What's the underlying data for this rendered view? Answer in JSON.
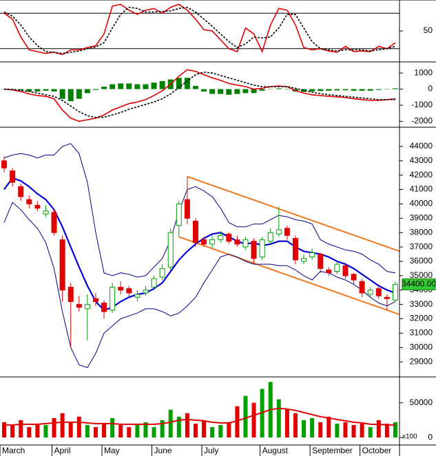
{
  "chart_data": [
    {
      "type": "oscillator",
      "ylim": [
        0,
        100
      ],
      "yticks": [
        50
      ],
      "levels": [
        20,
        80
      ],
      "series": [
        {
          "color": "#e00000",
          "style": "solid",
          "values": [
            80,
            70,
            40,
            18,
            15,
            12,
            14,
            10,
            18,
            18,
            22,
            25,
            45,
            92,
            95,
            85,
            78,
            85,
            88,
            80,
            90,
            95,
            85,
            70,
            52,
            50,
            35,
            20,
            15,
            55,
            45,
            15,
            60,
            88,
            85,
            60,
            22,
            18,
            20,
            16,
            14,
            24,
            15,
            16,
            15,
            24,
            20,
            30
          ]
        },
        {
          "color": "#000000",
          "style": "dashed",
          "values": [
            82,
            75,
            60,
            40,
            25,
            15,
            14,
            12,
            14,
            16,
            20,
            23,
            30,
            55,
            78,
            90,
            88,
            82,
            82,
            83,
            84,
            88,
            90,
            82,
            70,
            58,
            45,
            32,
            22,
            28,
            40,
            38,
            40,
            55,
            78,
            78,
            55,
            32,
            20,
            18,
            16,
            18,
            18,
            18,
            16,
            18,
            20,
            24
          ]
        }
      ]
    },
    {
      "type": "macd",
      "ylim": [
        -2280,
        1560
      ],
      "yticks": [
        1000,
        0,
        -1000,
        -2000
      ],
      "histogram": {
        "color": "#008000",
        "values": [
          0,
          -30,
          -70,
          -150,
          -150,
          -100,
          -150,
          -600,
          -750,
          -600,
          -250,
          -50,
          150,
          300,
          350,
          350,
          300,
          300,
          400,
          500,
          600,
          700,
          700,
          200,
          -150,
          -300,
          -300,
          -350,
          -300,
          -250,
          -250,
          -100,
          0,
          50,
          0,
          -150,
          -170,
          -150,
          -120,
          -100,
          -80,
          -70,
          -100,
          -100,
          -100,
          -50,
          0,
          50
        ]
      },
      "series": [
        {
          "color": "#e00000",
          "style": "solid",
          "values": [
            0,
            -50,
            -150,
            -300,
            -400,
            -450,
            -600,
            -1300,
            -1800,
            -2000,
            -1900,
            -1800,
            -1600,
            -1300,
            -1100,
            -900,
            -800,
            -650,
            -400,
            -100,
            300,
            800,
            1200,
            1100,
            900,
            700,
            550,
            350,
            250,
            150,
            0,
            50,
            150,
            200,
            150,
            -100,
            -250,
            -350,
            -400,
            -450,
            -480,
            -520,
            -600,
            -650,
            -700,
            -700,
            -650,
            -600
          ]
        },
        {
          "color": "#000000",
          "style": "dashed",
          "values": [
            0,
            -20,
            -80,
            -150,
            -250,
            -350,
            -450,
            -700,
            -1050,
            -1400,
            -1650,
            -1750,
            -1750,
            -1600,
            -1450,
            -1250,
            -1100,
            -950,
            -800,
            -600,
            -300,
            100,
            500,
            900,
            1050,
            1000,
            850,
            700,
            550,
            400,
            250,
            150,
            150,
            150,
            150,
            50,
            -80,
            -200,
            -280,
            -350,
            -400,
            -450,
            -500,
            -550,
            -600,
            -650,
            -650,
            -650
          ]
        }
      ]
    },
    {
      "type": "candlestick",
      "ylim": [
        28050,
        45240
      ],
      "yticks": [
        29000,
        30000,
        31000,
        32000,
        33000,
        34000,
        35000,
        36000,
        37000,
        38000,
        39000,
        40000,
        41000,
        42000,
        43000,
        44000
      ],
      "up_color": "#00a000",
      "down_color": "#e00000",
      "open": [
        43000,
        42300,
        41200,
        40300,
        39900,
        39300,
        39400,
        37500,
        34200,
        33000,
        32700,
        33400,
        33100,
        32600,
        34200,
        34100,
        33500,
        33800,
        34200,
        34900,
        35600,
        38500,
        40300,
        38800,
        37500,
        37200,
        37500,
        37900,
        37500,
        37000,
        37400,
        36300,
        37400,
        37900,
        38300,
        37600,
        36000,
        36300,
        36500,
        35400,
        35300,
        35700,
        35100,
        34600,
        33700,
        34100,
        33500,
        33300
      ],
      "high": [
        43300,
        42500,
        41400,
        40600,
        40200,
        39900,
        39600,
        37800,
        34500,
        33600,
        33700,
        33800,
        33300,
        34500,
        34600,
        34300,
        34000,
        34300,
        35000,
        35800,
        38300,
        40200,
        41900,
        39000,
        37700,
        37800,
        38100,
        38000,
        37800,
        37700,
        37600,
        37700,
        38300,
        39800,
        38500,
        37800,
        36500,
        36900,
        36600,
        35600,
        36000,
        35900,
        35200,
        34800,
        34200,
        34300,
        33700,
        34600
      ],
      "low": [
        42200,
        41200,
        40200,
        39700,
        39500,
        39100,
        37800,
        33200,
        30000,
        32500,
        30500,
        32900,
        32000,
        32400,
        33700,
        33500,
        33200,
        33600,
        34000,
        34700,
        35400,
        37700,
        38600,
        37000,
        37000,
        36900,
        37300,
        37200,
        37000,
        36800,
        35800,
        36100,
        37200,
        37700,
        37500,
        35800,
        35800,
        36100,
        35200,
        35000,
        35100,
        34800,
        34400,
        33500,
        33500,
        33400,
        32600,
        33200
      ],
      "close": [
        42500,
        41500,
        40500,
        40000,
        39700,
        39500,
        38000,
        34000,
        33200,
        32800,
        33000,
        33200,
        32500,
        34200,
        34000,
        33800,
        33700,
        34000,
        34800,
        35500,
        38000,
        40000,
        39000,
        37300,
        37200,
        37500,
        37800,
        37400,
        37200,
        37500,
        36200,
        37500,
        38000,
        38200,
        37800,
        36100,
        36200,
        36600,
        35500,
        35200,
        35800,
        35000,
        34700,
        33800,
        34000,
        33600,
        33400,
        34400
      ],
      "series": [
        {
          "color": "#0000dd",
          "width": 2.2,
          "values": [
            41000,
            41800,
            41600,
            41200,
            40700,
            40300,
            39600,
            38400,
            37000,
            35600,
            34300,
            33200,
            32600,
            32800,
            33200,
            33500,
            33700,
            33800,
            34100,
            34500,
            35300,
            36100,
            36700,
            37200,
            37600,
            37900,
            38000,
            37700,
            37400,
            37200,
            37300,
            37100,
            37200,
            37400,
            37400,
            37000,
            36700,
            36600,
            36500,
            36300,
            36000,
            35800,
            35500,
            35100,
            34700,
            34300,
            34000,
            33800
          ]
        },
        {
          "color": "#00008b",
          "width": 1,
          "values": [
            43200,
            43400,
            43500,
            43400,
            43200,
            43400,
            43400,
            44000,
            44200,
            43500,
            41500,
            38000,
            35200,
            35000,
            35200,
            35100,
            34900,
            35000,
            35600,
            36200,
            37500,
            39500,
            41000,
            41200,
            40900,
            40500,
            39700,
            38700,
            38400,
            38400,
            38600,
            38600,
            38900,
            39200,
            39100,
            38900,
            38800,
            38600,
            37500,
            37200,
            37000,
            36800,
            36700,
            36500,
            36100,
            35800,
            35300,
            35200
          ]
        },
        {
          "color": "#00008b",
          "width": 1,
          "values": [
            38700,
            40100,
            39600,
            38900,
            38300,
            37300,
            35500,
            32500,
            30000,
            28800,
            28600,
            29600,
            31000,
            31500,
            32000,
            32200,
            32400,
            32700,
            32700,
            32500,
            32200,
            32400,
            32900,
            33500,
            34500,
            35400,
            36300,
            36500,
            36300,
            36000,
            35800,
            35800,
            35800,
            35700,
            35700,
            35400,
            35000,
            34700,
            35300,
            35200,
            34900,
            34700,
            34400,
            34000,
            33500,
            33100,
            32900,
            33200
          ]
        }
      ],
      "channels": [
        {
          "color": "#f07820",
          "x": [
            22,
            47.5
          ],
          "y": [
            41900,
            36700
          ]
        },
        {
          "color": "#f07820",
          "x": [
            21,
            47.5
          ],
          "y": [
            37700,
            32300
          ]
        }
      ],
      "last_price": {
        "value": 34400,
        "label": "34400.00"
      }
    },
    {
      "type": "volume",
      "ylim": [
        -8800,
        84300
      ],
      "yticks": [
        50000,
        0
      ],
      "unit": "x100",
      "values": [
        22000,
        18000,
        25000,
        15000,
        20000,
        18000,
        28000,
        35000,
        22000,
        30000,
        18000,
        15000,
        20000,
        28000,
        18000,
        15000,
        18000,
        22000,
        15000,
        25000,
        40000,
        30000,
        35000,
        20000,
        25000,
        15000,
        18000,
        22000,
        45000,
        60000,
        50000,
        70000,
        80000,
        55000,
        40000,
        35000,
        25000,
        28000,
        22000,
        30000,
        20000,
        22000,
        18000,
        20000,
        15000,
        25000,
        20000,
        22000
      ],
      "series": [
        {
          "color": "#e00000",
          "width": 2,
          "values": [
            18000,
            18000,
            19000,
            19000,
            19000,
            20000,
            21000,
            22000,
            22000,
            22000,
            21000,
            20000,
            20000,
            20000,
            19000,
            19000,
            19000,
            19000,
            19000,
            20000,
            22000,
            25000,
            26000,
            25000,
            24000,
            22000,
            21000,
            21000,
            24000,
            28000,
            32000,
            36000,
            40000,
            42000,
            41000,
            39000,
            36000,
            33000,
            30000,
            28000,
            26000,
            24000,
            22000,
            21000,
            19000,
            19000,
            18000,
            18000
          ]
        }
      ],
      "x": [
        0,
        1,
        2,
        3,
        4,
        5,
        6,
        7,
        8,
        9,
        10,
        11,
        12,
        13,
        14,
        15,
        16,
        17,
        18,
        19,
        20,
        21,
        22,
        23,
        24,
        25,
        26,
        27,
        28,
        29,
        30,
        31,
        32,
        33,
        34,
        35,
        36,
        37,
        38,
        39,
        40,
        41,
        42,
        43,
        44,
        45,
        46,
        47
      ],
      "xlim": [
        -0.5,
        47.5
      ],
      "xticks": [
        {
          "value": -0.5,
          "label": "March"
        },
        {
          "value": 5.75,
          "label": "April"
        },
        {
          "value": 11.75,
          "label": "May"
        },
        {
          "value": 17.75,
          "label": "June"
        },
        {
          "value": 23.75,
          "label": "July"
        },
        {
          "value": 30.75,
          "label": "August"
        },
        {
          "value": 36.75,
          "label": "September"
        },
        {
          "value": 42.75,
          "label": "October"
        }
      ]
    }
  ]
}
